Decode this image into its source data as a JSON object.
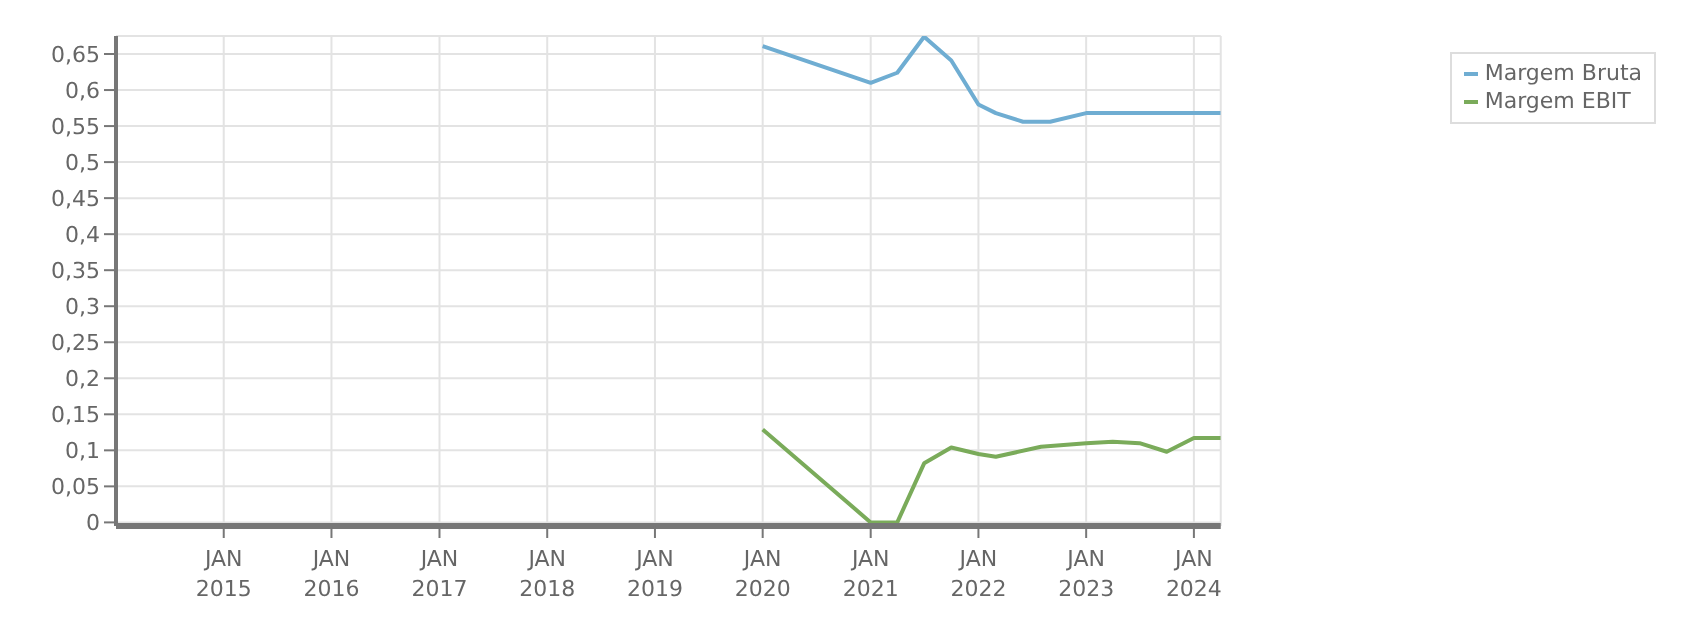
{
  "chart_data": {
    "type": "line",
    "x": [
      "2020-01",
      "2021-01",
      "2021-04",
      "2021-07",
      "2021-10",
      "2022-01",
      "2022-03",
      "2022-06",
      "2022-09",
      "2023-01",
      "2024-04"
    ],
    "series": [
      {
        "name": "Margem Bruta",
        "color": "#6fadd2",
        "values": [
          0.661,
          0.61,
          0.624,
          0.674,
          0.641,
          0.58,
          0.568,
          0.556,
          0.556,
          0.568,
          0.568
        ]
      },
      {
        "name": "Margem EBIT",
        "color": "#7aab5a",
        "x": [
          "2020-01",
          "2021-01",
          "2021-04",
          "2021-07",
          "2021-10",
          "2022-01",
          "2022-03",
          "2022-08",
          "2023-01",
          "2023-04",
          "2023-07",
          "2023-10",
          "2024-01",
          "2024-04"
        ],
        "values": [
          0.129,
          0,
          0,
          0.082,
          0.104,
          0.095,
          0.091,
          0.105,
          0.11,
          0.112,
          0.11,
          0.098,
          0.117,
          0.117
        ]
      }
    ],
    "xlim": [
      "2014-01",
      "2024-04"
    ],
    "xticks": [
      {
        "value": "2015-01",
        "label": "JAN 2015"
      },
      {
        "value": "2016-01",
        "label": "JAN 2016"
      },
      {
        "value": "2017-01",
        "label": "JAN 2017"
      },
      {
        "value": "2018-01",
        "label": "JAN 2018"
      },
      {
        "value": "2019-01",
        "label": "JAN 2019"
      },
      {
        "value": "2020-01",
        "label": "JAN 2020"
      },
      {
        "value": "2021-01",
        "label": "JAN 2021"
      },
      {
        "value": "2022-01",
        "label": "JAN 2022"
      },
      {
        "value": "2023-01",
        "label": "JAN 2023"
      },
      {
        "value": "2024-01",
        "label": "JAN 2024"
      }
    ],
    "ylim": [
      -0.005,
      0.675
    ],
    "yticks": [
      {
        "value": 0,
        "label": "0"
      },
      {
        "value": 0.05,
        "label": "0,05"
      },
      {
        "value": 0.1,
        "label": "0,1"
      },
      {
        "value": 0.15,
        "label": "0,15"
      },
      {
        "value": 0.2,
        "label": "0,2"
      },
      {
        "value": 0.25,
        "label": "0,25"
      },
      {
        "value": 0.3,
        "label": "0,3"
      },
      {
        "value": 0.35,
        "label": "0,35"
      },
      {
        "value": 0.4,
        "label": "0,4"
      },
      {
        "value": 0.45,
        "label": "0,45"
      },
      {
        "value": 0.5,
        "label": "0,5"
      },
      {
        "value": 0.55,
        "label": "0,55"
      },
      {
        "value": 0.6,
        "label": "0,6"
      },
      {
        "value": 0.65,
        "label": "0,65"
      }
    ],
    "grid": true,
    "legend": "top right",
    "marker": "none",
    "line_style": "solid"
  }
}
